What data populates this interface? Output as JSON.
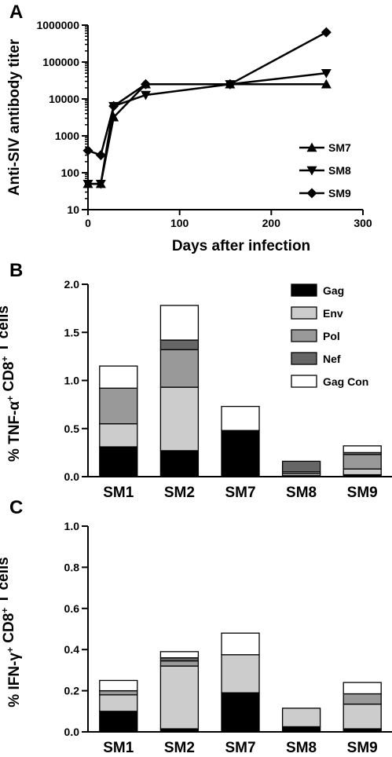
{
  "chart_data": [
    {
      "panel": "A",
      "type": "line",
      "xlabel": "Days after infection",
      "ylabel": "Anti-SIV antibody titer",
      "yscale": "log",
      "xlim": [
        0,
        300
      ],
      "ylim": [
        10,
        1000000
      ],
      "xticks": [
        "0",
        "100",
        "200",
        "300"
      ],
      "yticks": [
        "10",
        "100",
        "1000",
        "10000",
        "100000",
        "1000000"
      ],
      "legend_position": "right",
      "series": [
        {
          "name": "SM7",
          "marker": "triangle-up",
          "x": [
            0,
            14,
            28,
            63,
            155,
            260
          ],
          "y": [
            50,
            50,
            3200,
            25000,
            25000,
            25000
          ]
        },
        {
          "name": "SM8",
          "marker": "triangle-down",
          "x": [
            0,
            14,
            28,
            63,
            155,
            260
          ],
          "y": [
            50,
            50,
            6400,
            12800,
            25000,
            50000
          ]
        },
        {
          "name": "SM9",
          "marker": "diamond",
          "x": [
            0,
            14,
            28,
            63,
            155,
            260
          ],
          "y": [
            400,
            300,
            6400,
            25000,
            25000,
            640000
          ]
        }
      ]
    },
    {
      "panel": "B",
      "type": "bar",
      "stacked": true,
      "ylabel": "% TNF-α+ CD8+ T cells",
      "ylabel_parts": {
        "pre": "% TNF-",
        "greek": "α",
        "sup1": "+",
        "mid": " CD8",
        "sup2": "+",
        "post": " T cells"
      },
      "ylim": [
        0,
        2.0
      ],
      "yticks": [
        "0.0",
        "0.5",
        "1.0",
        "1.5",
        "2.0"
      ],
      "categories": [
        "SM1",
        "SM2",
        "SM7",
        "SM8",
        "SM9"
      ],
      "legend_position": "top-right",
      "series": [
        {
          "name": "Gag",
          "color": "#000000",
          "values": [
            0.31,
            0.27,
            0.48,
            0.01,
            0.02
          ]
        },
        {
          "name": "Env",
          "color": "#cccccc",
          "values": [
            0.24,
            0.66,
            0.0,
            0.02,
            0.06
          ]
        },
        {
          "name": "Pol",
          "color": "#999999",
          "values": [
            0.37,
            0.39,
            0.0,
            0.02,
            0.15
          ]
        },
        {
          "name": "Nef",
          "color": "#666666",
          "values": [
            0.0,
            0.1,
            0.0,
            0.11,
            0.02
          ]
        },
        {
          "name": "Gag Con",
          "color": "#ffffff",
          "values": [
            0.23,
            0.36,
            0.25,
            0.0,
            0.07
          ]
        }
      ]
    },
    {
      "panel": "C",
      "type": "bar",
      "stacked": true,
      "ylabel": "% IFN-γ+ CD8+ T cells",
      "ylabel_parts": {
        "pre": "% IFN-",
        "greek": "γ",
        "sup1": "+",
        "mid": " CD8",
        "sup2": "+",
        "post": " T cells"
      },
      "ylim": [
        0,
        1.0
      ],
      "yticks": [
        "0.0",
        "0.2",
        "0.4",
        "0.6",
        "0.8",
        "1.0"
      ],
      "categories": [
        "SM1",
        "SM2",
        "SM7",
        "SM8",
        "SM9"
      ],
      "series": [
        {
          "name": "Gag",
          "color": "#000000",
          "values": [
            0.1,
            0.015,
            0.19,
            0.025,
            0.015
          ]
        },
        {
          "name": "Env",
          "color": "#cccccc",
          "values": [
            0.08,
            0.305,
            0.185,
            0.09,
            0.12
          ]
        },
        {
          "name": "Pol",
          "color": "#999999",
          "values": [
            0.02,
            0.025,
            0.0,
            0.0,
            0.05
          ]
        },
        {
          "name": "Nef",
          "color": "#666666",
          "values": [
            0.0,
            0.015,
            0.0,
            0.0,
            0.0
          ]
        },
        {
          "name": "Gag Con",
          "color": "#ffffff",
          "values": [
            0.05,
            0.03,
            0.105,
            0.0,
            0.055
          ]
        }
      ]
    }
  ]
}
